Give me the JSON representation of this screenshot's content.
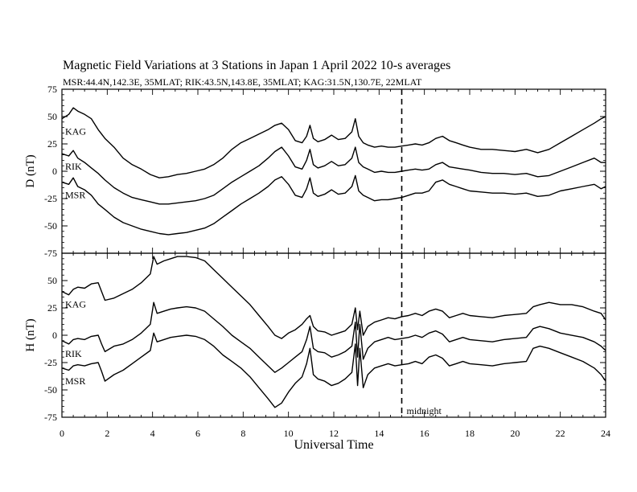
{
  "title": "Magnetic Field Variations at 3 Stations in Japan        1    April     2022      10-s averages",
  "subtitle": "MSR:44.4N,142.3E, 35MLAT;  RIK:43.5N,143.8E, 35MLAT;  KAG:31.5N,130.7E, 22MLAT",
  "chart_data": [
    {
      "type": "line",
      "ylabel": "D (nT)",
      "ylim": [
        -75,
        75
      ],
      "yticks": [
        75,
        50,
        25,
        0,
        -25,
        -50,
        -75
      ],
      "xlim": [
        0,
        24
      ],
      "annotation": "",
      "series": [
        {
          "name": "KAG",
          "x": [
            0,
            0.3,
            0.5,
            0.7,
            1,
            1.3,
            1.6,
            1.9,
            2.3,
            2.7,
            3.1,
            3.5,
            3.9,
            4.3,
            4.7,
            5.1,
            5.5,
            5.9,
            6.3,
            6.7,
            7.1,
            7.5,
            7.9,
            8.3,
            8.7,
            9.1,
            9.4,
            9.7,
            10,
            10.3,
            10.6,
            10.8,
            10.95,
            11.1,
            11.3,
            11.6,
            11.9,
            12.2,
            12.5,
            12.8,
            12.95,
            13.1,
            13.3,
            13.5,
            13.8,
            14.1,
            14.4,
            14.7,
            15,
            15.3,
            15.6,
            15.9,
            16.2,
            16.5,
            16.8,
            17.1,
            17.4,
            17.7,
            18,
            18.5,
            19,
            19.5,
            20,
            20.5,
            21,
            21.5,
            22,
            22.5,
            23,
            23.5,
            23.8,
            24
          ],
          "values": [
            48,
            52,
            58,
            55,
            52,
            48,
            38,
            30,
            22,
            12,
            6,
            2,
            -3,
            -6,
            -5,
            -3,
            -2,
            0,
            2,
            6,
            12,
            20,
            26,
            30,
            34,
            38,
            42,
            44,
            38,
            28,
            26,
            32,
            42,
            30,
            27,
            29,
            33,
            29,
            30,
            36,
            48,
            32,
            26,
            24,
            22,
            23,
            22,
            22,
            23,
            24,
            25,
            24,
            26,
            30,
            32,
            28,
            26,
            24,
            22,
            20,
            20,
            19,
            18,
            20,
            17,
            20,
            26,
            32,
            38,
            44,
            48,
            50
          ]
        },
        {
          "name": "RIK",
          "x": [
            0,
            0.3,
            0.5,
            0.7,
            1,
            1.3,
            1.6,
            1.9,
            2.3,
            2.7,
            3.1,
            3.5,
            3.9,
            4.3,
            4.7,
            5.1,
            5.5,
            5.9,
            6.3,
            6.7,
            7.1,
            7.5,
            7.9,
            8.3,
            8.7,
            9.1,
            9.4,
            9.7,
            10,
            10.3,
            10.6,
            10.8,
            10.95,
            11.1,
            11.3,
            11.6,
            11.9,
            12.2,
            12.5,
            12.8,
            12.95,
            13.1,
            13.3,
            13.5,
            13.8,
            14.1,
            14.4,
            14.7,
            15,
            15.3,
            15.6,
            15.9,
            16.2,
            16.5,
            16.8,
            17.1,
            17.4,
            17.7,
            18,
            18.5,
            19,
            19.5,
            20,
            20.5,
            21,
            21.5,
            22,
            22.5,
            23,
            23.5,
            23.8,
            24
          ],
          "values": [
            16,
            14,
            19,
            12,
            8,
            3,
            -2,
            -8,
            -15,
            -20,
            -24,
            -26,
            -28,
            -30,
            -30,
            -29,
            -28,
            -27,
            -25,
            -22,
            -16,
            -10,
            -5,
            0,
            5,
            12,
            18,
            22,
            14,
            4,
            2,
            10,
            20,
            6,
            3,
            5,
            9,
            5,
            6,
            12,
            22,
            8,
            4,
            2,
            -1,
            0,
            -1,
            -1,
            0,
            1,
            2,
            1,
            2,
            6,
            8,
            4,
            3,
            2,
            1,
            -1,
            -2,
            -2,
            -3,
            -2,
            -5,
            -4,
            0,
            4,
            8,
            12,
            8,
            8
          ]
        },
        {
          "name": "MSR",
          "x": [
            0,
            0.3,
            0.5,
            0.7,
            1,
            1.3,
            1.6,
            1.9,
            2.3,
            2.7,
            3.1,
            3.5,
            3.9,
            4.3,
            4.7,
            5.1,
            5.5,
            5.9,
            6.3,
            6.7,
            7.1,
            7.5,
            7.9,
            8.3,
            8.7,
            9.1,
            9.4,
            9.7,
            10,
            10.3,
            10.6,
            10.8,
            10.95,
            11.1,
            11.3,
            11.6,
            11.9,
            12.2,
            12.5,
            12.8,
            12.95,
            13.1,
            13.3,
            13.5,
            13.8,
            14.1,
            14.4,
            14.7,
            15,
            15.3,
            15.6,
            15.9,
            16.2,
            16.5,
            16.8,
            17.1,
            17.4,
            17.7,
            18,
            18.5,
            19,
            19.5,
            20,
            20.5,
            21,
            21.5,
            22,
            22.5,
            23,
            23.5,
            23.8,
            24
          ],
          "values": [
            -10,
            -12,
            -6,
            -14,
            -17,
            -22,
            -30,
            -35,
            -42,
            -47,
            -50,
            -53,
            -55,
            -57,
            -58,
            -57,
            -56,
            -54,
            -52,
            -48,
            -42,
            -36,
            -30,
            -25,
            -20,
            -14,
            -8,
            -5,
            -12,
            -22,
            -24,
            -16,
            -6,
            -20,
            -23,
            -21,
            -17,
            -21,
            -20,
            -14,
            -4,
            -18,
            -22,
            -24,
            -27,
            -26,
            -26,
            -25,
            -24,
            -22,
            -20,
            -20,
            -18,
            -10,
            -8,
            -12,
            -14,
            -16,
            -18,
            -19,
            -20,
            -20,
            -21,
            -20,
            -23,
            -22,
            -18,
            -16,
            -14,
            -12,
            -16,
            -14
          ]
        }
      ]
    },
    {
      "type": "line",
      "ylabel": "H (nT)",
      "ylim": [
        -75,
        75
      ],
      "yticks": [
        75,
        50,
        25,
        0,
        -25,
        -50,
        -75
      ],
      "xlim": [
        0,
        24
      ],
      "xticks": [
        0,
        2,
        4,
        6,
        8,
        10,
        12,
        14,
        16,
        18,
        20,
        22,
        24
      ],
      "xlabel": "Universal Time",
      "annotation": "midnight",
      "marker_x": 15,
      "series": [
        {
          "name": "KAG",
          "x": [
            0,
            0.3,
            0.5,
            0.7,
            1,
            1.3,
            1.6,
            1.75,
            1.9,
            2.3,
            2.7,
            3.1,
            3.5,
            3.9,
            4.05,
            4.2,
            4.5,
            4.8,
            5.1,
            5.5,
            5.9,
            6.3,
            6.7,
            7.1,
            7.5,
            7.9,
            8.3,
            8.7,
            9.1,
            9.4,
            9.7,
            10,
            10.3,
            10.6,
            10.8,
            10.95,
            11.1,
            11.3,
            11.6,
            11.9,
            12.2,
            12.5,
            12.8,
            12.95,
            13.05,
            13.15,
            13.3,
            13.5,
            13.8,
            14.1,
            14.4,
            14.7,
            15,
            15.3,
            15.6,
            15.9,
            16.2,
            16.5,
            16.8,
            17.1,
            17.4,
            17.7,
            18,
            18.5,
            19,
            19.5,
            20,
            20.5,
            20.8,
            21.1,
            21.5,
            22,
            22.5,
            23,
            23.5,
            23.8,
            24
          ],
          "values": [
            40,
            37,
            42,
            44,
            43,
            47,
            48,
            40,
            32,
            34,
            38,
            42,
            48,
            56,
            72,
            65,
            68,
            70,
            72,
            72,
            71,
            68,
            60,
            52,
            44,
            36,
            28,
            18,
            8,
            0,
            -3,
            2,
            5,
            10,
            15,
            18,
            8,
            4,
            3,
            0,
            2,
            4,
            10,
            25,
            5,
            22,
            0,
            8,
            12,
            14,
            16,
            15,
            17,
            18,
            20,
            18,
            22,
            24,
            22,
            16,
            18,
            20,
            18,
            17,
            16,
            18,
            19,
            20,
            26,
            28,
            30,
            28,
            28,
            26,
            22,
            20,
            14
          ]
        },
        {
          "name": "RIK",
          "x": [
            0,
            0.3,
            0.5,
            0.7,
            1,
            1.3,
            1.6,
            1.75,
            1.9,
            2.3,
            2.7,
            3.1,
            3.5,
            3.9,
            4.05,
            4.2,
            4.5,
            4.8,
            5.1,
            5.5,
            5.9,
            6.3,
            6.7,
            7.1,
            7.5,
            7.9,
            8.3,
            8.7,
            9.1,
            9.4,
            9.7,
            10,
            10.3,
            10.6,
            10.8,
            10.95,
            11.1,
            11.3,
            11.6,
            11.9,
            12.2,
            12.5,
            12.8,
            12.95,
            13.05,
            13.15,
            13.3,
            13.5,
            13.8,
            14.1,
            14.4,
            14.7,
            15,
            15.3,
            15.6,
            15.9,
            16.2,
            16.5,
            16.8,
            17.1,
            17.4,
            17.7,
            18,
            18.5,
            19,
            19.5,
            20,
            20.5,
            20.8,
            21.1,
            21.5,
            22,
            22.5,
            23,
            23.5,
            23.8,
            24
          ],
          "values": [
            -5,
            -8,
            -4,
            -3,
            -4,
            -1,
            0,
            -8,
            -15,
            -10,
            -8,
            -4,
            2,
            10,
            30,
            20,
            22,
            24,
            25,
            26,
            25,
            22,
            15,
            8,
            0,
            -6,
            -12,
            -20,
            -28,
            -34,
            -30,
            -25,
            -20,
            -15,
            -4,
            8,
            -12,
            -15,
            -16,
            -20,
            -18,
            -15,
            -10,
            12,
            -20,
            10,
            -22,
            -12,
            -6,
            -4,
            -2,
            -4,
            -3,
            -2,
            0,
            -2,
            2,
            4,
            1,
            -6,
            -4,
            -2,
            -4,
            -5,
            -6,
            -4,
            -3,
            -2,
            6,
            8,
            6,
            2,
            0,
            -2,
            -6,
            -10,
            -14
          ]
        },
        {
          "name": "MSR",
          "x": [
            0,
            0.3,
            0.5,
            0.7,
            1,
            1.3,
            1.6,
            1.75,
            1.9,
            2.3,
            2.7,
            3.1,
            3.5,
            3.9,
            4.05,
            4.2,
            4.5,
            4.8,
            5.1,
            5.5,
            5.9,
            6.3,
            6.7,
            7.1,
            7.5,
            7.9,
            8.3,
            8.7,
            9.1,
            9.4,
            9.7,
            10,
            10.3,
            10.6,
            10.8,
            10.95,
            11.1,
            11.3,
            11.6,
            11.9,
            12.2,
            12.5,
            12.8,
            12.95,
            13.05,
            13.15,
            13.3,
            13.5,
            13.8,
            14.1,
            14.4,
            14.7,
            15,
            15.3,
            15.6,
            15.9,
            16.2,
            16.5,
            16.8,
            17.1,
            17.4,
            17.7,
            18,
            18.5,
            19,
            19.5,
            20,
            20.5,
            20.8,
            21.1,
            21.5,
            22,
            22.5,
            23,
            23.5,
            23.8,
            24
          ],
          "values": [
            -30,
            -32,
            -28,
            -27,
            -28,
            -26,
            -25,
            -33,
            -42,
            -36,
            -32,
            -26,
            -20,
            -14,
            2,
            -6,
            -4,
            -2,
            -1,
            0,
            -1,
            -4,
            -10,
            -18,
            -24,
            -30,
            -38,
            -48,
            -58,
            -66,
            -62,
            -52,
            -44,
            -38,
            -26,
            -12,
            -36,
            -40,
            -42,
            -46,
            -44,
            -40,
            -34,
            -8,
            -46,
            -12,
            -48,
            -36,
            -30,
            -28,
            -26,
            -28,
            -27,
            -26,
            -24,
            -26,
            -20,
            -18,
            -21,
            -28,
            -26,
            -24,
            -26,
            -27,
            -28,
            -26,
            -25,
            -24,
            -12,
            -10,
            -12,
            -16,
            -20,
            -24,
            -30,
            -36,
            -42
          ]
        }
      ]
    }
  ]
}
